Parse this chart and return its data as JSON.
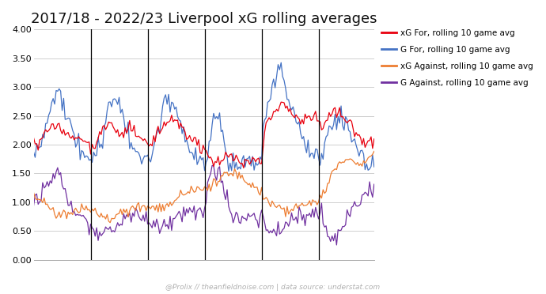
{
  "title": "2017/18 - 2022/23 Liverpool xG rolling averages",
  "legend_entries": [
    {
      "label": "xG For, rolling 10 game avg",
      "color": "#e8000e"
    },
    {
      "label": "G For, rolling 10 game avg",
      "color": "#4472c4"
    },
    {
      "label": "xG Against, rolling 10 game avg",
      "color": "#ed7d31"
    },
    {
      "label": "G Against, rolling 10 game avg",
      "color": "#7030a0"
    }
  ],
  "ylim": [
    0.0,
    4.0
  ],
  "yticks": [
    0.0,
    0.5,
    1.0,
    1.5,
    2.0,
    2.5,
    3.0,
    3.5,
    4.0
  ],
  "season_boundaries": [
    38,
    76,
    114,
    152,
    190
  ],
  "n_games": 228,
  "watermark": "@Prolix // theanfieldnoise.com | data source: understat.com",
  "background_color": "#ffffff",
  "grid_color": "#c8c8c8",
  "line_width": 0.9,
  "vline_color": "#000000",
  "title_fontsize": 13,
  "tick_fontsize": 8,
  "legend_fontsize": 7.5,
  "watermark_fontsize": 6.5
}
